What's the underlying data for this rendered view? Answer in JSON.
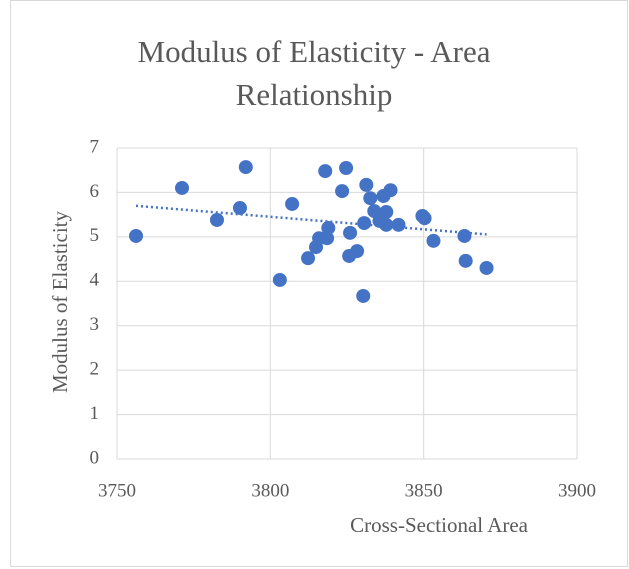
{
  "chart_data": {
    "type": "scatter",
    "title": "Modulus of Elasticity - Area Relationship",
    "xlabel": "Cross-Sectional Area",
    "ylabel": "Modulus of Elasticity",
    "x": [
      3756.2,
      3771.2,
      3782.6,
      3790.1,
      3792.0,
      3803.1,
      3807.1,
      3812.3,
      3814.9,
      3815.9,
      3817.9,
      3818.5,
      3818.9,
      3823.4,
      3824.7,
      3826.0,
      3825.7,
      3828.3,
      3830.3,
      3830.6,
      3831.3,
      3832.6,
      3833.9,
      3835.6,
      3836.9,
      3837.8,
      3837.8,
      3839.2,
      3841.8,
      3849.6,
      3850.3,
      3853.2,
      3863.3,
      3863.7,
      3870.5
    ],
    "values": [
      5.02,
      6.1,
      5.38,
      5.65,
      6.57,
      4.03,
      5.74,
      4.52,
      4.77,
      4.97,
      6.48,
      4.97,
      5.2,
      6.03,
      6.55,
      5.09,
      4.57,
      4.68,
      3.67,
      5.31,
      6.17,
      5.87,
      5.58,
      5.36,
      5.92,
      5.56,
      5.27,
      6.05,
      5.27,
      5.47,
      5.42,
      4.91,
      5.02,
      4.46,
      4.3
    ],
    "color": "#4472c4",
    "trendline": true,
    "xlim": [
      3750,
      3900
    ],
    "xticks": [
      3750,
      3800,
      3850,
      3900
    ],
    "ylim": [
      0,
      7
    ],
    "yticks": [
      0,
      1,
      2,
      3,
      4,
      5,
      6,
      7
    ],
    "grid": true
  }
}
